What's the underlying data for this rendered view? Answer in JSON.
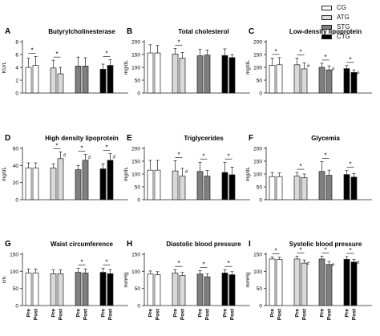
{
  "legend": [
    {
      "label": "CG",
      "color": "#ffffff"
    },
    {
      "label": "ATG",
      "color": "#d9d9d9"
    },
    {
      "label": "STG",
      "color": "#7f7f7f"
    },
    {
      "label": "CTG",
      "color": "#000000"
    }
  ],
  "x_tick_labels": [
    "Pre",
    "Post",
    "Pre",
    "Post",
    "Pre",
    "Post",
    "Pre",
    "Post"
  ],
  "chart_data": [
    {
      "type": "bar",
      "panel": "A",
      "title": "Butyrylcholinesterase",
      "ylabel": "KU/L",
      "ylim": [
        0,
        8
      ],
      "yticks": [
        0,
        2,
        4,
        6,
        8
      ],
      "series": [
        {
          "name": "CG",
          "values": [
            4.0,
            4.3
          ],
          "error": [
            1.4,
            1.4
          ]
        },
        {
          "name": "ATG",
          "values": [
            3.9,
            3.0
          ],
          "error": [
            1.2,
            1.0
          ]
        },
        {
          "name": "STG",
          "values": [
            4.2,
            4.2
          ],
          "error": [
            1.4,
            1.3
          ]
        },
        {
          "name": "CTG",
          "values": [
            3.7,
            4.3
          ],
          "error": [
            0.8,
            0.9
          ]
        }
      ],
      "significance": [
        {
          "group": "CG",
          "label": "*"
        },
        {
          "group": "ATG",
          "label": "*"
        },
        {
          "group": "CTG",
          "label": "*"
        }
      ]
    },
    {
      "type": "bar",
      "panel": "B",
      "title": "Total cholesterol",
      "ylabel": "mg/dL",
      "ylim": [
        0,
        200
      ],
      "yticks": [
        0,
        50,
        100,
        150,
        200
      ],
      "series": [
        {
          "name": "CG",
          "values": [
            156,
            156
          ],
          "error": [
            32,
            30
          ]
        },
        {
          "name": "ATG",
          "values": [
            152,
            136
          ],
          "error": [
            22,
            22
          ]
        },
        {
          "name": "STG",
          "values": [
            145,
            148
          ],
          "error": [
            26,
            20
          ]
        },
        {
          "name": "CTG",
          "values": [
            146,
            138
          ],
          "error": [
            26,
            12
          ]
        }
      ],
      "significance": [
        {
          "group": "ATG",
          "label": "*"
        }
      ]
    },
    {
      "type": "bar",
      "panel": "C",
      "title": "Low-density lipoprotein",
      "ylabel": "mg/dL",
      "ylim": [
        0,
        200
      ],
      "yticks": [
        0,
        50,
        100,
        150,
        200
      ],
      "series": [
        {
          "name": "CG",
          "values": [
            108,
            110
          ],
          "error": [
            28,
            28
          ]
        },
        {
          "name": "ATG",
          "values": [
            110,
            94
          ],
          "error": [
            26,
            24
          ]
        },
        {
          "name": "STG",
          "values": [
            100,
            90
          ],
          "error": [
            16,
            16
          ]
        },
        {
          "name": "CTG",
          "values": [
            95,
            80
          ],
          "error": [
            12,
            10
          ]
        }
      ],
      "significance": [
        {
          "group": "CG",
          "label": "*"
        },
        {
          "group": "ATG",
          "label": "*"
        },
        {
          "group": "STG",
          "label": "*"
        },
        {
          "group": "CTG",
          "label": "*"
        }
      ],
      "markers": [
        {
          "group": "ATG",
          "point": "Post",
          "label": "#"
        },
        {
          "group": "STG",
          "point": "Post",
          "label": "#"
        },
        {
          "group": "CTG",
          "point": "Post",
          "label": "#"
        }
      ]
    },
    {
      "type": "bar",
      "panel": "D",
      "title": "High density lipoprotein",
      "ylabel": "mg/dL",
      "ylim": [
        0,
        60
      ],
      "yticks": [
        0,
        20,
        40,
        60
      ],
      "series": [
        {
          "name": "CG",
          "values": [
            37,
            37
          ],
          "error": [
            6,
            6
          ]
        },
        {
          "name": "ATG",
          "values": [
            37,
            48
          ],
          "error": [
            5,
            8
          ]
        },
        {
          "name": "STG",
          "values": [
            35,
            46
          ],
          "error": [
            5,
            7
          ]
        },
        {
          "name": "CTG",
          "values": [
            36,
            46
          ],
          "error": [
            6,
            8
          ]
        }
      ],
      "significance": [
        {
          "group": "ATG",
          "label": "*"
        },
        {
          "group": "STG",
          "label": "*"
        },
        {
          "group": "CTG",
          "label": "*"
        }
      ],
      "markers": [
        {
          "group": "ATG",
          "point": "Post",
          "label": "#"
        },
        {
          "group": "STG",
          "point": "Post",
          "label": "#"
        },
        {
          "group": "CTG",
          "point": "Post",
          "label": "#"
        }
      ]
    },
    {
      "type": "bar",
      "panel": "E",
      "title": "Triglycerides",
      "ylabel": "mg/dL",
      "ylim": [
        0,
        200
      ],
      "yticks": [
        0,
        50,
        100,
        150,
        200
      ],
      "series": [
        {
          "name": "CG",
          "values": [
            115,
            115
          ],
          "error": [
            38,
            38
          ]
        },
        {
          "name": "ATG",
          "values": [
            112,
            92
          ],
          "error": [
            40,
            30
          ]
        },
        {
          "name": "STG",
          "values": [
            110,
            92
          ],
          "error": [
            36,
            22
          ]
        },
        {
          "name": "CTG",
          "values": [
            106,
            97
          ],
          "error": [
            40,
            30
          ]
        }
      ],
      "significance": [
        {
          "group": "ATG",
          "label": "*"
        },
        {
          "group": "STG",
          "label": "*"
        },
        {
          "group": "CTG",
          "label": "*"
        }
      ],
      "markers": [
        {
          "group": "ATG",
          "point": "Post",
          "label": "#"
        }
      ]
    },
    {
      "type": "bar",
      "panel": "F",
      "title": "Glycemia",
      "ylabel": "mg/dL",
      "ylim": [
        0,
        200
      ],
      "yticks": [
        0,
        50,
        100,
        150,
        200
      ],
      "series": [
        {
          "name": "CG",
          "values": [
            90,
            90
          ],
          "error": [
            16,
            14
          ]
        },
        {
          "name": "ATG",
          "values": [
            92,
            86
          ],
          "error": [
            14,
            14
          ]
        },
        {
          "name": "STG",
          "values": [
            110,
            95
          ],
          "error": [
            38,
            20
          ]
        },
        {
          "name": "CTG",
          "values": [
            98,
            88
          ],
          "error": [
            16,
            14
          ]
        }
      ],
      "significance": [
        {
          "group": "ATG",
          "label": "*"
        },
        {
          "group": "STG",
          "label": "*"
        },
        {
          "group": "CTG",
          "label": "*"
        }
      ]
    },
    {
      "type": "bar",
      "panel": "G",
      "title": "Waist circumference",
      "ylabel": "cm",
      "ylim": [
        0,
        150
      ],
      "yticks": [
        0,
        50,
        100,
        150
      ],
      "series": [
        {
          "name": "CG",
          "values": [
            95,
            95
          ],
          "error": [
            12,
            12
          ]
        },
        {
          "name": "ATG",
          "values": [
            93,
            93
          ],
          "error": [
            11,
            11
          ]
        },
        {
          "name": "STG",
          "values": [
            97,
            95
          ],
          "error": [
            12,
            12
          ]
        },
        {
          "name": "CTG",
          "values": [
            97,
            93
          ],
          "error": [
            12,
            12
          ]
        }
      ],
      "significance": [
        {
          "group": "STG",
          "label": "*"
        },
        {
          "group": "CTG",
          "label": "*"
        }
      ]
    },
    {
      "type": "bar",
      "panel": "H",
      "title": "Diastolic blood pressure",
      "ylabel": "mmHg",
      "ylim": [
        0,
        150
      ],
      "yticks": [
        0,
        50,
        100,
        150
      ],
      "series": [
        {
          "name": "CG",
          "values": [
            92,
            90
          ],
          "error": [
            9,
            9
          ]
        },
        {
          "name": "ATG",
          "values": [
            95,
            88
          ],
          "error": [
            10,
            9
          ]
        },
        {
          "name": "STG",
          "values": [
            92,
            84
          ],
          "error": [
            10,
            9
          ]
        },
        {
          "name": "CTG",
          "values": [
            95,
            90
          ],
          "error": [
            10,
            9
          ]
        }
      ],
      "significance": [
        {
          "group": "ATG",
          "label": "*"
        },
        {
          "group": "STG",
          "label": "*"
        },
        {
          "group": "CTG",
          "label": "*"
        }
      ]
    },
    {
      "type": "bar",
      "panel": "I",
      "title": "Systolic blood pressure",
      "ylabel": "mmHg",
      "ylim": [
        0,
        150
      ],
      "yticks": [
        0,
        50,
        100,
        150
      ],
      "series": [
        {
          "name": "CG",
          "values": [
            136,
            135
          ],
          "error": [
            6,
            6
          ]
        },
        {
          "name": "ATG",
          "values": [
            136,
            124
          ],
          "error": [
            8,
            9
          ]
        },
        {
          "name": "STG",
          "values": [
            136,
            120
          ],
          "error": [
            8,
            9
          ]
        },
        {
          "name": "CTG",
          "values": [
            135,
            127
          ],
          "error": [
            8,
            8
          ]
        }
      ],
      "significance": [
        {
          "group": "CG",
          "label": "*"
        },
        {
          "group": "ATG",
          "label": "*"
        },
        {
          "group": "STG",
          "label": "*"
        },
        {
          "group": "CTG",
          "label": "*"
        }
      ],
      "markers": [
        {
          "group": "ATG",
          "point": "Post",
          "label": "#"
        },
        {
          "group": "STG",
          "point": "Post",
          "label": "#"
        },
        {
          "group": "CTG",
          "point": "Post",
          "label": "#"
        }
      ]
    }
  ]
}
